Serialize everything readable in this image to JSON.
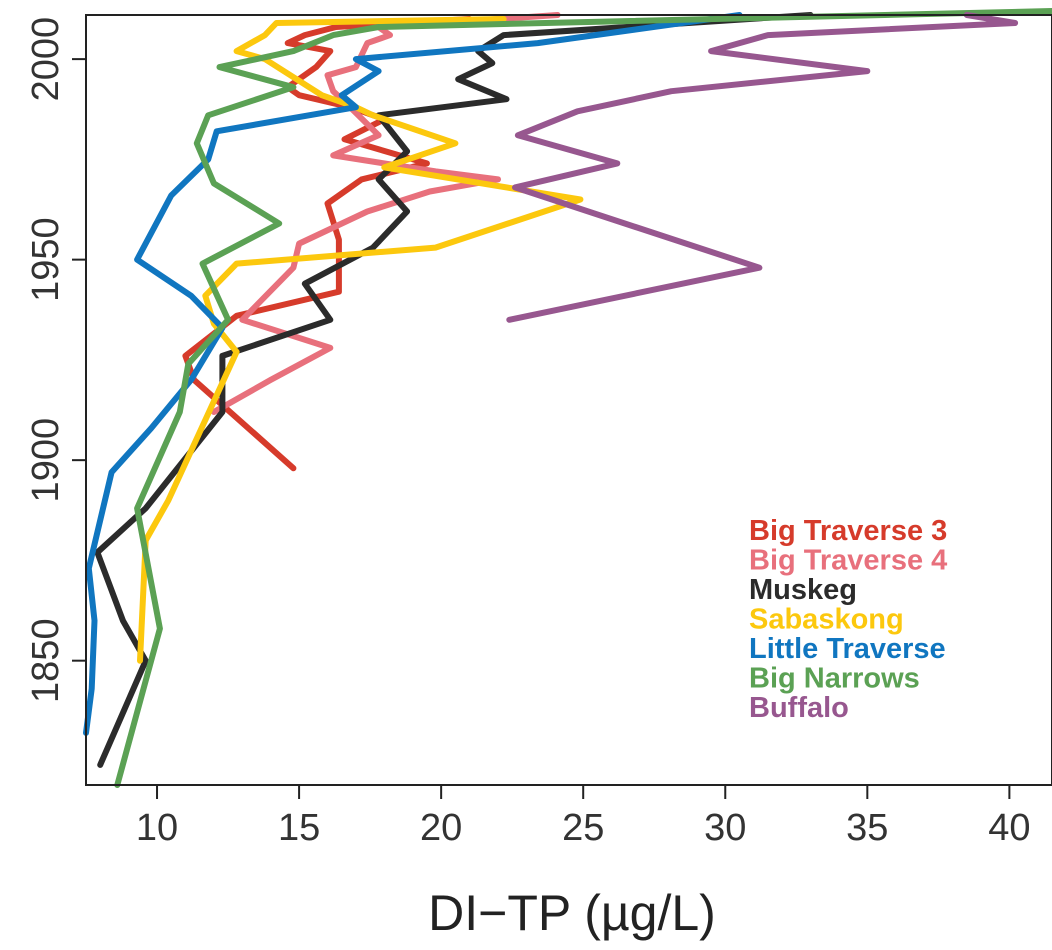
{
  "chart_data": {
    "type": "line",
    "title": "",
    "xlabel": "DI−TP (µg/L)",
    "ylabel": "",
    "xlim": [
      7.5,
      41.5
    ],
    "ylim": [
      1819,
      2011
    ],
    "xticks": [
      10,
      15,
      20,
      25,
      30,
      35,
      40
    ],
    "yticks": [
      1850,
      1900,
      1950,
      2000
    ],
    "grid": false,
    "legend_position": "bottom-right",
    "series": [
      {
        "name": "Big Traverse 3",
        "color": "#d63b2b",
        "points": [
          [
            14.8,
            1898
          ],
          [
            11.3,
            1920
          ],
          [
            11.0,
            1926
          ],
          [
            12.8,
            1936
          ],
          [
            16.4,
            1942
          ],
          [
            16.4,
            1955
          ],
          [
            16.0,
            1964
          ],
          [
            17.2,
            1970
          ],
          [
            19.5,
            1974
          ],
          [
            16.6,
            1980
          ],
          [
            18.0,
            1985
          ],
          [
            16.8,
            1988
          ],
          [
            15.0,
            1991
          ],
          [
            14.6,
            1993
          ],
          [
            15.6,
            1998
          ],
          [
            16.1,
            2002
          ],
          [
            14.6,
            2004
          ],
          [
            15.2,
            2006
          ],
          [
            16.3,
            2008
          ],
          [
            21.0,
            2010
          ]
        ]
      },
      {
        "name": "Big Traverse 4",
        "color": "#e8707c",
        "points": [
          [
            12.0,
            1912
          ],
          [
            14.0,
            1920
          ],
          [
            16.1,
            1928
          ],
          [
            13.0,
            1935
          ],
          [
            14.8,
            1948
          ],
          [
            15.0,
            1954
          ],
          [
            17.4,
            1962
          ],
          [
            19.6,
            1967
          ],
          [
            22.0,
            1970
          ],
          [
            19.8,
            1972
          ],
          [
            16.2,
            1976
          ],
          [
            17.8,
            1981
          ],
          [
            16.8,
            1988
          ],
          [
            16.2,
            1992
          ],
          [
            16.0,
            1996
          ],
          [
            17.0,
            1998
          ],
          [
            17.4,
            2004
          ],
          [
            18.2,
            2006
          ],
          [
            17.8,
            2008
          ],
          [
            24.1,
            2011
          ]
        ]
      },
      {
        "name": "Muskeg",
        "color": "#2b2b2b",
        "points": [
          [
            8.0,
            1824
          ],
          [
            9.6,
            1850
          ],
          [
            8.8,
            1860
          ],
          [
            7.9,
            1877
          ],
          [
            9.6,
            1888
          ],
          [
            12.3,
            1912
          ],
          [
            12.3,
            1926
          ],
          [
            16.1,
            1935
          ],
          [
            15.2,
            1944
          ],
          [
            17.6,
            1953
          ],
          [
            18.8,
            1962
          ],
          [
            17.8,
            1970
          ],
          [
            18.8,
            1977
          ],
          [
            17.8,
            1986
          ],
          [
            22.3,
            1990
          ],
          [
            20.6,
            1995
          ],
          [
            21.8,
            1999
          ],
          [
            21.3,
            2002
          ],
          [
            22.2,
            2006
          ],
          [
            33.0,
            2011
          ]
        ]
      },
      {
        "name": "Sabaskong",
        "color": "#fcc80e",
        "points": [
          [
            9.4,
            1850
          ],
          [
            9.6,
            1880
          ],
          [
            10.4,
            1890
          ],
          [
            12.8,
            1927
          ],
          [
            12.0,
            1934
          ],
          [
            11.7,
            1941
          ],
          [
            12.8,
            1949
          ],
          [
            19.8,
            1953
          ],
          [
            24.9,
            1965
          ],
          [
            18.0,
            1973
          ],
          [
            20.5,
            1979
          ],
          [
            17.6,
            1986
          ],
          [
            17.0,
            1988
          ],
          [
            15.8,
            1991
          ],
          [
            13.8,
            2000
          ],
          [
            12.8,
            2002
          ],
          [
            13.8,
            2006
          ],
          [
            14.2,
            2009
          ],
          [
            22.2,
            2010
          ]
        ]
      },
      {
        "name": "Little Traverse",
        "color": "#1076c0",
        "points": [
          [
            7.5,
            1832
          ],
          [
            7.7,
            1843
          ],
          [
            7.8,
            1860
          ],
          [
            7.6,
            1873
          ],
          [
            8.4,
            1897
          ],
          [
            9.8,
            1908
          ],
          [
            11.2,
            1920
          ],
          [
            12.3,
            1933
          ],
          [
            11.2,
            1941
          ],
          [
            9.3,
            1950
          ],
          [
            10.5,
            1966
          ],
          [
            11.8,
            1975
          ],
          [
            12.1,
            1982
          ],
          [
            17.0,
            1988
          ],
          [
            16.5,
            1991
          ],
          [
            17.8,
            1997
          ],
          [
            17.0,
            2000
          ],
          [
            23.4,
            2004
          ],
          [
            30.5,
            2011
          ]
        ]
      },
      {
        "name": "Big Narrows",
        "color": "#5ba154",
        "points": [
          [
            8.6,
            1819
          ],
          [
            10.1,
            1858
          ],
          [
            9.3,
            1888
          ],
          [
            10.8,
            1912
          ],
          [
            11.1,
            1924
          ],
          [
            12.5,
            1935
          ],
          [
            11.6,
            1949
          ],
          [
            14.3,
            1959
          ],
          [
            12.0,
            1969
          ],
          [
            11.4,
            1979
          ],
          [
            11.8,
            1986
          ],
          [
            14.8,
            1993
          ],
          [
            12.2,
            1998
          ],
          [
            14.8,
            2002
          ],
          [
            16.2,
            2006
          ],
          [
            17.8,
            2008
          ],
          [
            41.5,
            2012
          ]
        ]
      },
      {
        "name": "Buffalo",
        "color": "#97578f",
        "points": [
          [
            22.4,
            1935
          ],
          [
            31.2,
            1948
          ],
          [
            22.6,
            1968
          ],
          [
            26.2,
            1974
          ],
          [
            22.7,
            1981
          ],
          [
            24.8,
            1987
          ],
          [
            28.1,
            1992
          ],
          [
            35.0,
            1997
          ],
          [
            29.5,
            2002
          ],
          [
            31.5,
            2006
          ],
          [
            40.2,
            2009
          ],
          [
            38.5,
            2011
          ]
        ]
      }
    ]
  }
}
